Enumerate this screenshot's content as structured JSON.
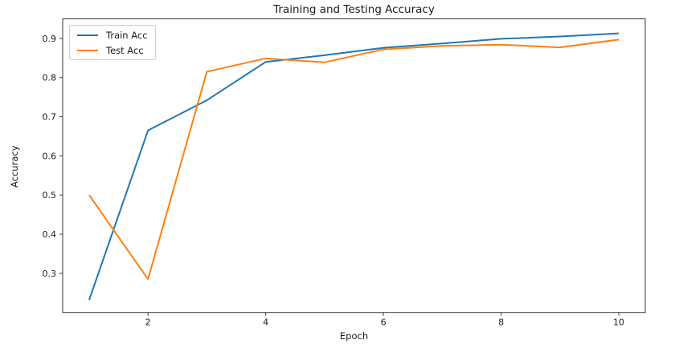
{
  "chart_data": {
    "type": "line",
    "title": "Training and Testing Accuracy",
    "xlabel": "Epoch",
    "ylabel": "Accuracy",
    "x": [
      1,
      2,
      3,
      4,
      5,
      6,
      7,
      8,
      9,
      10
    ],
    "series": [
      {
        "name": "Train Acc",
        "color": "#1f77b4",
        "values": [
          0.232,
          0.665,
          0.742,
          0.84,
          0.857,
          0.876,
          0.887,
          0.899,
          0.905,
          0.913
        ]
      },
      {
        "name": "Test Acc",
        "color": "#ff7f0e",
        "values": [
          0.5,
          0.285,
          0.815,
          0.849,
          0.839,
          0.872,
          0.881,
          0.884,
          0.877,
          0.897
        ]
      }
    ],
    "xticks": [
      2,
      4,
      6,
      8,
      10
    ],
    "yticks": [
      0.3,
      0.4,
      0.5,
      0.6,
      0.7,
      0.8,
      0.9
    ],
    "xlim": [
      0.55,
      10.45
    ],
    "ylim": [
      0.2,
      0.95
    ],
    "grid": false,
    "legend": {
      "position": "upper left",
      "entries": [
        "Train Acc",
        "Test Acc"
      ]
    }
  }
}
